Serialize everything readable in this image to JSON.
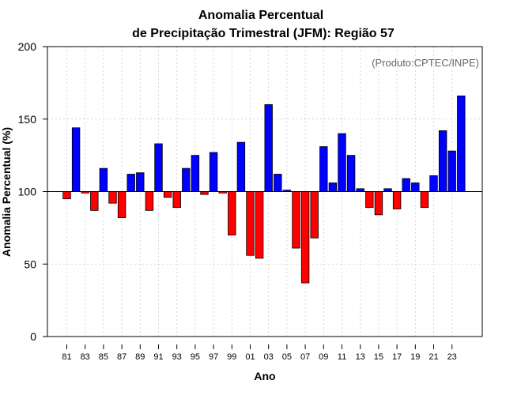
{
  "chart_data": {
    "type": "bar",
    "title_line1": "Anomalia Percentual",
    "title_line2": "de Precipitação Trimestral (JFM): Região 57",
    "xlabel": "Ano",
    "ylabel": "Anomalia Percentual (%)",
    "credit": "(Produto:CPTEC/INPE)",
    "baseline": 100,
    "ylim": [
      0,
      200
    ],
    "yticks": [
      0,
      50,
      100,
      150,
      200
    ],
    "grid": true,
    "colors": {
      "above": "#0000ff",
      "below": "#ff0000",
      "outline": "#000000",
      "grid": "#cccccc"
    },
    "categories": [
      "81",
      "82",
      "83",
      "84",
      "85",
      "86",
      "87",
      "88",
      "89",
      "90",
      "91",
      "92",
      "93",
      "94",
      "95",
      "96",
      "97",
      "98",
      "99",
      "00",
      "01",
      "02",
      "03",
      "04",
      "05",
      "06",
      "07",
      "08",
      "09",
      "10",
      "11",
      "12",
      "13",
      "14",
      "15",
      "16",
      "17",
      "18",
      "19",
      "20",
      "21",
      "22",
      "23",
      "24"
    ],
    "x_tick_labels": [
      "81",
      "83",
      "85",
      "87",
      "89",
      "91",
      "93",
      "95",
      "97",
      "99",
      "01",
      "03",
      "05",
      "07",
      "09",
      "11",
      "13",
      "15",
      "17",
      "19",
      "21",
      "23"
    ],
    "values": [
      95,
      144,
      99,
      87,
      116,
      92,
      82,
      112,
      113,
      87,
      133,
      96,
      89,
      116,
      125,
      98,
      127,
      99,
      70,
      134,
      56,
      54,
      160,
      112,
      101,
      61,
      37,
      68,
      131,
      106,
      140,
      125,
      102,
      89,
      84,
      102,
      88,
      109,
      106,
      89,
      111,
      142,
      128,
      166
    ]
  }
}
